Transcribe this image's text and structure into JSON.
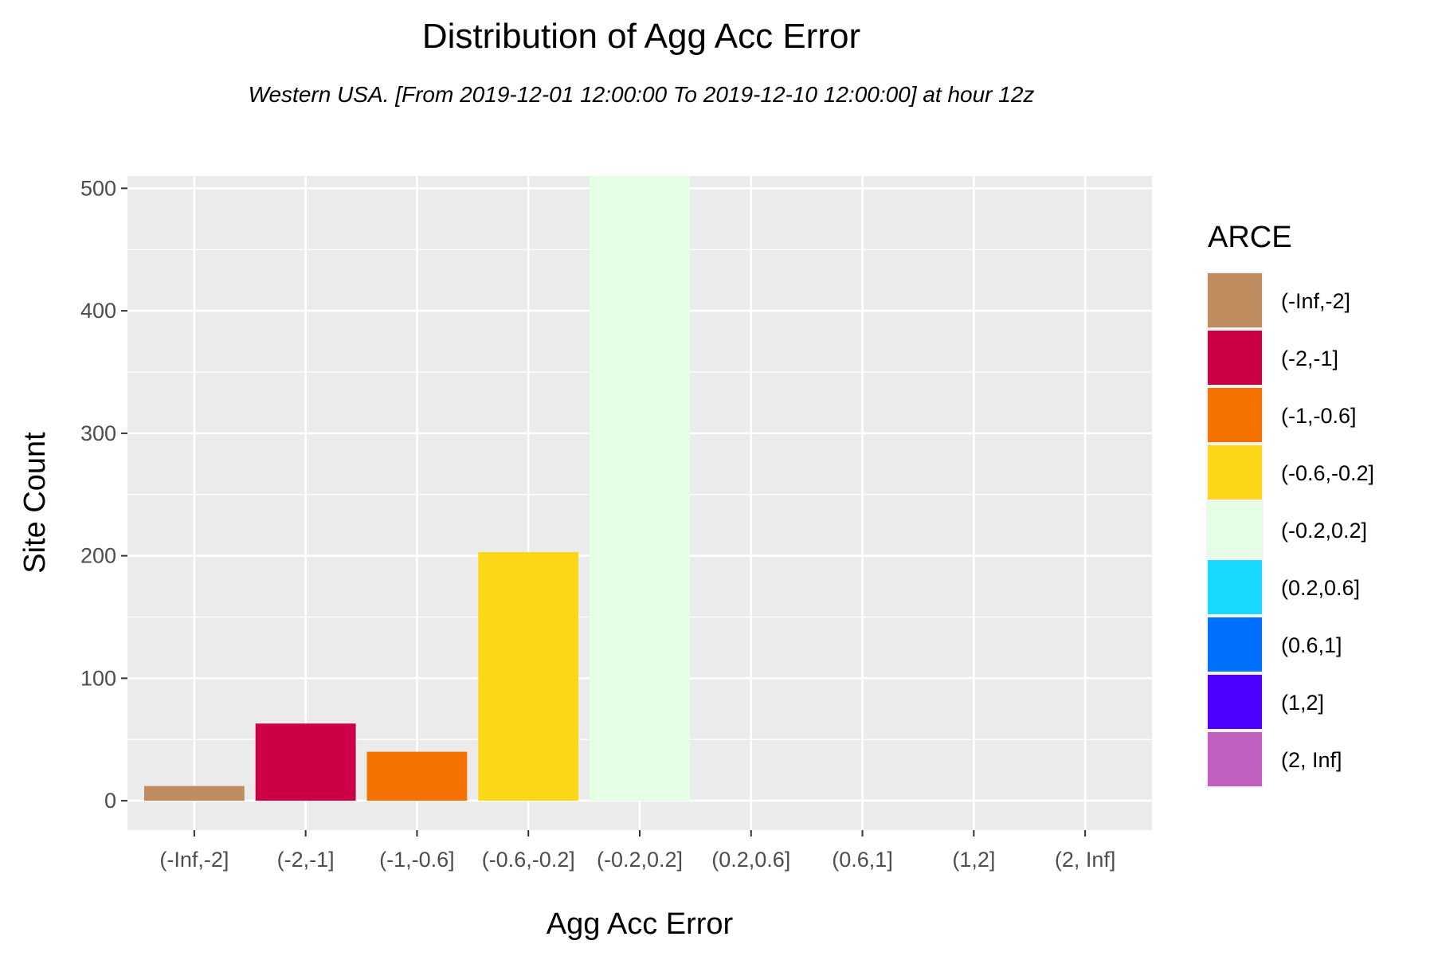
{
  "chart_data": {
    "type": "bar",
    "title": "Distribution of Agg Acc Error",
    "subtitle": "Western USA.  [From 2019-12-01 12:00:00 To 2019-12-10 12:00:00] at hour 12z",
    "xlabel": "Agg Acc Error",
    "ylabel": "Site Count",
    "categories": [
      "(-Inf,-2]",
      "(-2,-1]",
      "(-1,-0.6]",
      "(-0.6,-0.2]",
      "(-0.2,0.2]",
      "(0.2,0.6]",
      "(0.6,1]",
      "(1,2]",
      "(2, Inf]"
    ],
    "values": [
      12,
      63,
      40,
      203,
      530,
      0,
      0,
      0,
      0
    ],
    "colors": [
      "#BF8C60",
      "#CC0047",
      "#F57200",
      "#FCD719",
      "#E5FFE5",
      "#19D9FF",
      "#0071FF",
      "#4C00FF",
      "#BF5FBF"
    ],
    "ylim": [
      -24,
      510
    ],
    "yticks": [
      0,
      100,
      200,
      300,
      400,
      500
    ],
    "grid": true,
    "legend": {
      "title": "ARCE",
      "position": "right",
      "items": [
        "(-Inf,-2]",
        "(-2,-1]",
        "(-1,-0.6]",
        "(-0.6,-0.2]",
        "(-0.2,0.2]",
        "(0.2,0.6]",
        "(0.6,1]",
        "(1,2]",
        "(2, Inf]"
      ]
    }
  }
}
